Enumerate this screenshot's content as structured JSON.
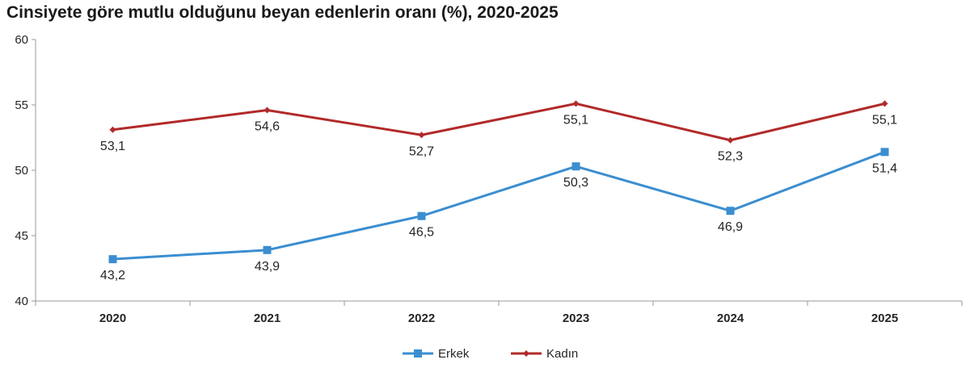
{
  "chart_data": {
    "type": "line",
    "title": "Cinsiyete göre mutlu olduğunu beyan edenlerin oranı (%), 2020-2025",
    "categories": [
      "2020",
      "2021",
      "2022",
      "2023",
      "2024",
      "2025"
    ],
    "series": [
      {
        "name": "Erkek",
        "values": [
          43.2,
          43.9,
          46.5,
          50.3,
          46.9,
          51.4
        ],
        "labels": [
          "43,2",
          "43,9",
          "46,5",
          "50,3",
          "46,9",
          "51,4"
        ],
        "color": "#3b8ed0",
        "marker": "square",
        "label_position": "below"
      },
      {
        "name": "Kadın",
        "values": [
          53.1,
          54.6,
          52.7,
          55.1,
          52.3,
          55.1
        ],
        "labels": [
          "53,1",
          "54,6",
          "52,7",
          "55,1",
          "52,3",
          "55,1"
        ],
        "color": "#b22a2a",
        "marker": "diamond",
        "label_position": "below"
      }
    ],
    "yticks": [
      "40",
      "45",
      "50",
      "55",
      "60"
    ],
    "ylim": [
      40,
      60
    ],
    "grid": false,
    "legend": "bottom-center"
  }
}
